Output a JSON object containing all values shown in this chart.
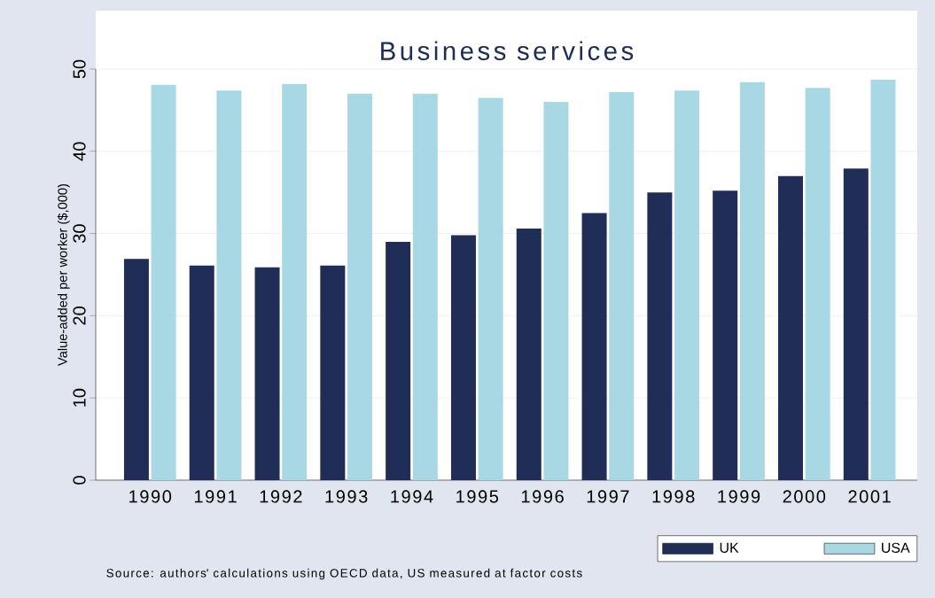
{
  "chart_data": {
    "type": "bar",
    "title": "Business services",
    "ylabel": "Value-added per worker ($,000)",
    "categories": [
      "1990",
      "1991",
      "1992",
      "1993",
      "1994",
      "1995",
      "1996",
      "1997",
      "1998",
      "1999",
      "2000",
      "2001"
    ],
    "series": [
      {
        "name": "UK",
        "color": "#1f2d57",
        "values": [
          26.9,
          26.1,
          25.9,
          26.1,
          29.0,
          29.8,
          30.6,
          32.5,
          35.0,
          35.2,
          37.0,
          37.9
        ]
      },
      {
        "name": "USA",
        "color": "#a8d8e4",
        "values": [
          48.1,
          47.4,
          48.2,
          47.0,
          47.0,
          46.5,
          46.0,
          47.2,
          47.4,
          48.4,
          47.7,
          48.7
        ]
      }
    ],
    "ylim": [
      0,
      50
    ],
    "yticks": [
      0,
      10,
      20,
      30,
      40,
      50
    ],
    "grid": "y",
    "legend": "bottom right",
    "annotations": [
      "Source: authors' calculations using OECD data, US measured at factor costs"
    ]
  }
}
